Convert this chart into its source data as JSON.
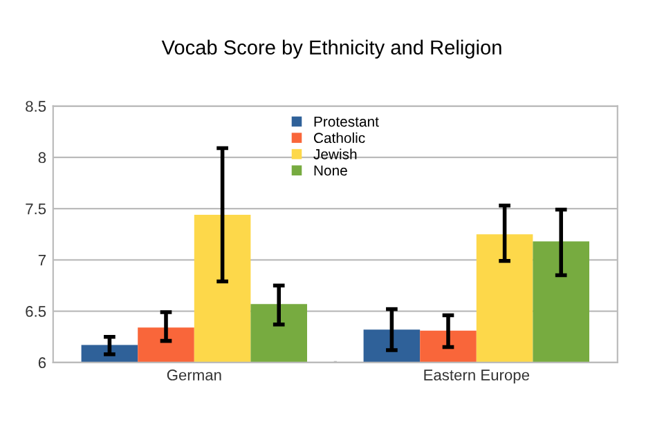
{
  "chart_data": {
    "type": "bar",
    "title": "Vocab Score by Ethnicity and Religion",
    "categories": [
      "German",
      "Eastern Europe"
    ],
    "series": [
      {
        "name": "Protestant",
        "color": "#2f6199",
        "values": [
          6.17,
          6.32
        ],
        "errors": [
          [
            6.08,
            6.25
          ],
          [
            6.12,
            6.52
          ]
        ]
      },
      {
        "name": "Catholic",
        "color": "#f9663a",
        "values": [
          6.34,
          6.31
        ],
        "errors": [
          [
            6.21,
            6.49
          ],
          [
            6.15,
            6.46
          ]
        ]
      },
      {
        "name": "Jewish",
        "color": "#fdd84a",
        "values": [
          7.44,
          7.25
        ],
        "errors": [
          [
            6.79,
            8.09
          ],
          [
            6.99,
            7.53
          ]
        ]
      },
      {
        "name": "None",
        "color": "#77ab40",
        "values": [
          6.57,
          7.18
        ],
        "errors": [
          [
            6.37,
            6.75
          ],
          [
            6.85,
            7.49
          ]
        ]
      }
    ],
    "ylim": [
      6,
      8.5
    ],
    "yticks": [
      6,
      6.5,
      7,
      7.5,
      8,
      8.5
    ],
    "grid": "y",
    "legend": "top"
  }
}
